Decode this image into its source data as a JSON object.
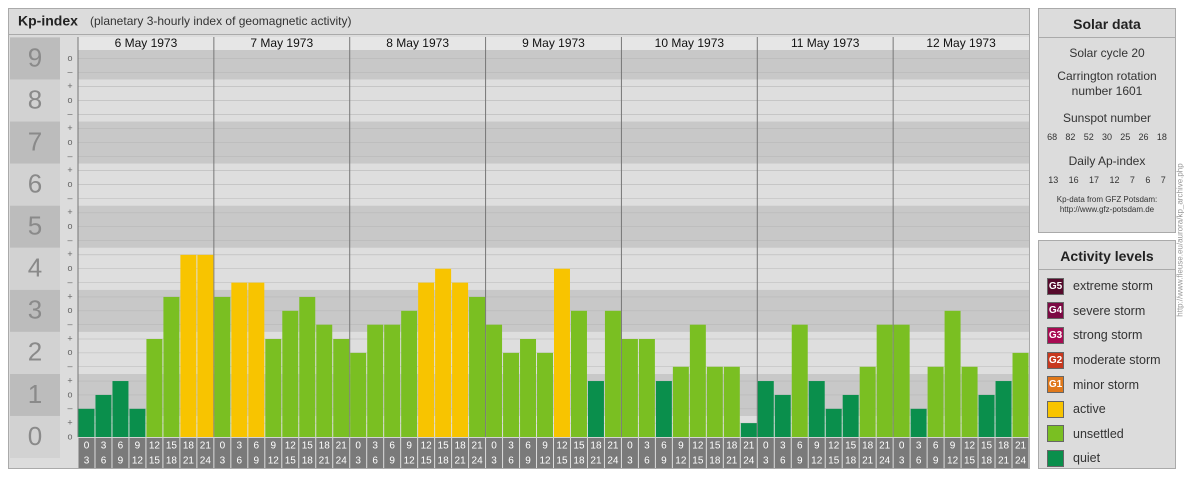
{
  "chart_data": {
    "type": "bar",
    "title": "Kp-index",
    "subtitle": "(planetary 3-hourly index of geomagnetic activity)",
    "days": [
      "6 May 1973",
      "7 May 1973",
      "8 May 1973",
      "9 May 1973",
      "10 May 1973",
      "11 May 1973",
      "12 May 1973"
    ],
    "hours_from": [
      0,
      3,
      6,
      9,
      12,
      15,
      18,
      21
    ],
    "hours_to": [
      3,
      6,
      9,
      12,
      15,
      18,
      21,
      24
    ],
    "values": [
      0.67,
      1,
      1.33,
      0.67,
      2.33,
      3.33,
      4.33,
      4.33,
      3.33,
      3.67,
      3.67,
      2.33,
      3,
      3.33,
      2.67,
      2.33,
      2,
      2.67,
      2.67,
      3,
      3.67,
      4,
      3.67,
      3.33,
      2.67,
      2,
      2.33,
      2,
      4,
      3,
      1.33,
      3,
      2.33,
      2.33,
      1.33,
      1.67,
      2.67,
      1.67,
      1.67,
      0.33,
      1.33,
      1,
      2.67,
      1.33,
      0.67,
      1,
      1.67,
      2.67,
      2.67,
      0.67,
      1.67,
      3,
      1.67,
      1,
      1.33,
      2
    ],
    "colors": [
      "#0a8f4c",
      "#0a8f4c",
      "#0a8f4c",
      "#0a8f4c",
      "#7abf22",
      "#7abf22",
      "#f8c400",
      "#f8c400",
      "#7abf22",
      "#f8c400",
      "#f8c400",
      "#7abf22",
      "#7abf22",
      "#7abf22",
      "#7abf22",
      "#7abf22",
      "#7abf22",
      "#7abf22",
      "#7abf22",
      "#7abf22",
      "#f8c400",
      "#f8c400",
      "#f8c400",
      "#7abf22",
      "#7abf22",
      "#7abf22",
      "#7abf22",
      "#7abf22",
      "#f8c400",
      "#7abf22",
      "#0a8f4c",
      "#7abf22",
      "#7abf22",
      "#7abf22",
      "#0a8f4c",
      "#7abf22",
      "#7abf22",
      "#7abf22",
      "#7abf22",
      "#0a8f4c",
      "#0a8f4c",
      "#0a8f4c",
      "#7abf22",
      "#0a8f4c",
      "#0a8f4c",
      "#0a8f4c",
      "#7abf22",
      "#7abf22",
      "#7abf22",
      "#0a8f4c",
      "#7abf22",
      "#7abf22",
      "#7abf22",
      "#0a8f4c",
      "#0a8f4c",
      "#7abf22"
    ],
    "ylim": [
      0,
      9.2
    ],
    "yticks": [
      0,
      1,
      2,
      3,
      4,
      5,
      6,
      7,
      8,
      9
    ],
    "minor_yticks": [
      {
        "value": 0,
        "label": "o"
      },
      {
        "value": 0.33,
        "label": "+"
      },
      {
        "value": 0.67,
        "label": "–"
      },
      {
        "value": 1,
        "label": "o"
      },
      {
        "value": 1.33,
        "label": "+"
      },
      {
        "value": 1.67,
        "label": "–"
      },
      {
        "value": 2,
        "label": "o"
      },
      {
        "value": 2.33,
        "label": "+"
      },
      {
        "value": 2.67,
        "label": "–"
      },
      {
        "value": 3,
        "label": "o"
      },
      {
        "value": 3.33,
        "label": "+"
      },
      {
        "value": 3.67,
        "label": "–"
      },
      {
        "value": 4,
        "label": "o"
      },
      {
        "value": 4.33,
        "label": "+"
      },
      {
        "value": 4.67,
        "label": "–"
      },
      {
        "value": 5,
        "label": "o"
      },
      {
        "value": 5.33,
        "label": "+"
      },
      {
        "value": 5.67,
        "label": "–"
      },
      {
        "value": 6,
        "label": "o"
      },
      {
        "value": 6.33,
        "label": "+"
      },
      {
        "value": 6.67,
        "label": "–"
      },
      {
        "value": 7,
        "label": "o"
      },
      {
        "value": 7.33,
        "label": "+"
      },
      {
        "value": 7.67,
        "label": "–"
      },
      {
        "value": 8,
        "label": "o"
      },
      {
        "value": 8.33,
        "label": "+"
      },
      {
        "value": 8.67,
        "label": "–"
      },
      {
        "value": 9,
        "label": "o"
      }
    ],
    "grid": true
  },
  "solar_data": {
    "title": "Solar data",
    "cycle": "Solar cycle 20",
    "carrington": "Carrington rotation number 1601",
    "sunspot_title": "Sunspot number",
    "sunspot": [
      68,
      82,
      52,
      30,
      25,
      26,
      18
    ],
    "ap_title": "Daily Ap-index",
    "ap": [
      13,
      16,
      17,
      12,
      7,
      6,
      7
    ],
    "source": "Kp-data from GFZ Potsdam:",
    "source_url": "http://www.gfz-potsdam.de"
  },
  "activity_levels": {
    "title": "Activity levels",
    "levels": [
      {
        "badge": "G5",
        "label": "extreme storm",
        "color": "#560a2c"
      },
      {
        "badge": "G4",
        "label": "severe storm",
        "color": "#7c0a44"
      },
      {
        "badge": "G3",
        "label": "strong storm",
        "color": "#a80a52"
      },
      {
        "badge": "G2",
        "label": "moderate storm",
        "color": "#c8381e"
      },
      {
        "badge": "G1",
        "label": "minor storm",
        "color": "#e0781a"
      },
      {
        "label": "active",
        "color": "#f8c400"
      },
      {
        "label": "unsettled",
        "color": "#7abf22"
      },
      {
        "label": "quiet",
        "color": "#0a8f4c"
      }
    ]
  },
  "credit": "http://www.fleuse.eu/aurora/kp_archive.php"
}
